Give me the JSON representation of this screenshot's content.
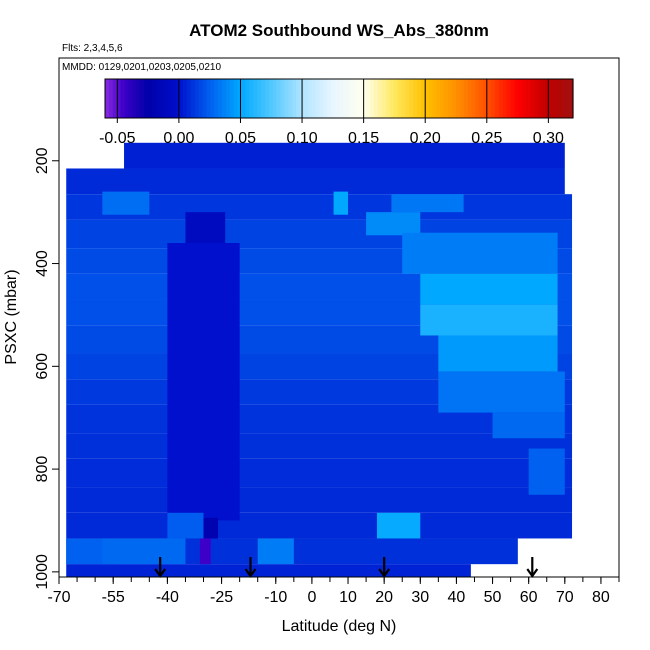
{
  "chart_data": {
    "type": "heatmap",
    "title": "ATOM2 Southbound WS_Abs_380nm",
    "annotations": {
      "flights": "Flts: 2,3,4,5,6",
      "dates": "MMDD: 0129,0201,0203,0205,0210"
    },
    "xlabel": "Latitude (deg N)",
    "ylabel": "PSXC (mbar)",
    "xlim": [
      -70,
      85
    ],
    "ylim": [
      1010,
      0
    ],
    "x_ticks": [
      -70,
      -55,
      -40,
      -25,
      -10,
      0,
      10,
      20,
      30,
      40,
      50,
      60,
      70,
      80
    ],
    "x_minor_step": 5,
    "y_ticks": [
      200,
      400,
      600,
      800,
      1000
    ],
    "colorbar": {
      "min": -0.06,
      "max": 0.32,
      "ticks": [
        -0.05,
        0.0,
        0.05,
        0.1,
        0.15,
        0.2,
        0.25,
        0.3
      ],
      "tick_labels": [
        "-0.05",
        "0.00",
        "0.05",
        "0.10",
        "0.15",
        "0.20",
        "0.25",
        "0.30"
      ],
      "stops": [
        {
          "v": -0.06,
          "c": "#8a2be2"
        },
        {
          "v": -0.045,
          "c": "#3d00c8"
        },
        {
          "v": -0.025,
          "c": "#0000a8"
        },
        {
          "v": 0.0,
          "c": "#0010cc"
        },
        {
          "v": 0.025,
          "c": "#0060f0"
        },
        {
          "v": 0.05,
          "c": "#00a8ff"
        },
        {
          "v": 0.075,
          "c": "#50c8ff"
        },
        {
          "v": 0.1,
          "c": "#b0e4ff"
        },
        {
          "v": 0.125,
          "c": "#e8f6ff"
        },
        {
          "v": 0.15,
          "c": "#ffffee"
        },
        {
          "v": 0.175,
          "c": "#ffe860"
        },
        {
          "v": 0.2,
          "c": "#ffc000"
        },
        {
          "v": 0.225,
          "c": "#ff9000"
        },
        {
          "v": 0.25,
          "c": "#ff5000"
        },
        {
          "v": 0.275,
          "c": "#ff0000"
        },
        {
          "v": 0.3,
          "c": "#c00000"
        },
        {
          "v": 0.32,
          "c": "#a01010"
        }
      ]
    },
    "grid": false,
    "profile_markers_lat": [
      -42,
      -17,
      20,
      61
    ],
    "cells": [
      {
        "lat": [
          -52,
          70
        ],
        "p": [
          165,
          215
        ],
        "v": 0.005
      },
      {
        "lat": [
          -68,
          70
        ],
        "p": [
          215,
          265
        ],
        "v": 0.008
      },
      {
        "lat": [
          -68,
          72
        ],
        "p": [
          265,
          315
        ],
        "v": 0.012
      },
      {
        "lat": [
          -68,
          72
        ],
        "p": [
          315,
          370
        ],
        "v": 0.016
      },
      {
        "lat": [
          -68,
          72
        ],
        "p": [
          370,
          420
        ],
        "v": 0.018
      },
      {
        "lat": [
          -68,
          72
        ],
        "p": [
          420,
          470
        ],
        "v": 0.02
      },
      {
        "lat": [
          -68,
          72
        ],
        "p": [
          470,
          520
        ],
        "v": 0.02
      },
      {
        "lat": [
          -68,
          72
        ],
        "p": [
          520,
          575
        ],
        "v": 0.018
      },
      {
        "lat": [
          -68,
          72
        ],
        "p": [
          575,
          625
        ],
        "v": 0.016
      },
      {
        "lat": [
          -68,
          72
        ],
        "p": [
          625,
          675
        ],
        "v": 0.013
      },
      {
        "lat": [
          -68,
          72
        ],
        "p": [
          675,
          730
        ],
        "v": 0.011
      },
      {
        "lat": [
          -68,
          72
        ],
        "p": [
          730,
          780
        ],
        "v": 0.01
      },
      {
        "lat": [
          -68,
          72
        ],
        "p": [
          780,
          835
        ],
        "v": 0.009
      },
      {
        "lat": [
          -68,
          72
        ],
        "p": [
          835,
          885
        ],
        "v": 0.008
      },
      {
        "lat": [
          -68,
          72
        ],
        "p": [
          885,
          935
        ],
        "v": 0.008
      },
      {
        "lat": [
          -68,
          57
        ],
        "p": [
          935,
          985
        ],
        "v": 0.01
      },
      {
        "lat": [
          -68,
          44
        ],
        "p": [
          985,
          1010
        ],
        "v": 0.006
      },
      {
        "lat": [
          -58,
          -45
        ],
        "p": [
          260,
          305
        ],
        "v": 0.03
      },
      {
        "lat": [
          6,
          10
        ],
        "p": [
          260,
          305
        ],
        "v": 0.05
      },
      {
        "lat": [
          22,
          42
        ],
        "p": [
          265,
          300
        ],
        "v": 0.033
      },
      {
        "lat": [
          15,
          30
        ],
        "p": [
          300,
          345
        ],
        "v": 0.04
      },
      {
        "lat": [
          25,
          68
        ],
        "p": [
          340,
          420
        ],
        "v": 0.035
      },
      {
        "lat": [
          30,
          68
        ],
        "p": [
          420,
          480
        ],
        "v": 0.05
      },
      {
        "lat": [
          30,
          68
        ],
        "p": [
          480,
          540
        ],
        "v": 0.058
      },
      {
        "lat": [
          35,
          68
        ],
        "p": [
          540,
          610
        ],
        "v": 0.045
      },
      {
        "lat": [
          35,
          70
        ],
        "p": [
          610,
          690
        ],
        "v": 0.032
      },
      {
        "lat": [
          50,
          70
        ],
        "p": [
          690,
          740
        ],
        "v": 0.028
      },
      {
        "lat": [
          60,
          70
        ],
        "p": [
          760,
          850
        ],
        "v": 0.025
      },
      {
        "lat": [
          -35,
          -24
        ],
        "p": [
          300,
          360
        ],
        "v": -0.008
      },
      {
        "lat": [
          -40,
          -20
        ],
        "p": [
          360,
          900
        ],
        "v": 0.0
      },
      {
        "lat": [
          -30,
          -26
        ],
        "p": [
          895,
          935
        ],
        "v": -0.02
      },
      {
        "lat": [
          -31,
          -28
        ],
        "p": [
          935,
          985
        ],
        "v": -0.045
      },
      {
        "lat": [
          -15,
          -5
        ],
        "p": [
          935,
          985
        ],
        "v": 0.035
      },
      {
        "lat": [
          -40,
          -30
        ],
        "p": [
          885,
          935
        ],
        "v": 0.024
      },
      {
        "lat": [
          18,
          30
        ],
        "p": [
          885,
          935
        ],
        "v": 0.052
      },
      {
        "lat": [
          -68,
          -55
        ],
        "p": [
          935,
          985
        ],
        "v": 0.025
      },
      {
        "lat": [
          -58,
          -35
        ],
        "p": [
          935,
          985
        ],
        "v": 0.028
      }
    ]
  }
}
